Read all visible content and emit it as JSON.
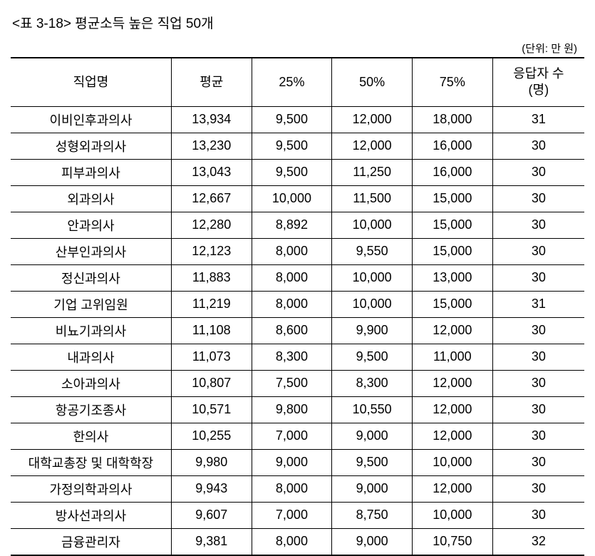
{
  "title": "<표 3-18> 평균소득 높은 직업 50개",
  "unit": "(단위: 만 원)",
  "table": {
    "headers": {
      "name": "직업명",
      "avg": "평균",
      "p25": "25%",
      "p50": "50%",
      "p75": "75%",
      "respondents": "응답자 수\n(명)"
    },
    "rows": [
      {
        "name": "이비인후과의사",
        "avg": "13,934",
        "p25": "9,500",
        "p50": "12,000",
        "p75": "18,000",
        "resp": "31"
      },
      {
        "name": "성형외과의사",
        "avg": "13,230",
        "p25": "9,500",
        "p50": "12,000",
        "p75": "16,000",
        "resp": "30"
      },
      {
        "name": "피부과의사",
        "avg": "13,043",
        "p25": "9,500",
        "p50": "11,250",
        "p75": "16,000",
        "resp": "30"
      },
      {
        "name": "외과의사",
        "avg": "12,667",
        "p25": "10,000",
        "p50": "11,500",
        "p75": "15,000",
        "resp": "30"
      },
      {
        "name": "안과의사",
        "avg": "12,280",
        "p25": "8,892",
        "p50": "10,000",
        "p75": "15,000",
        "resp": "30"
      },
      {
        "name": "산부인과의사",
        "avg": "12,123",
        "p25": "8,000",
        "p50": "9,550",
        "p75": "15,000",
        "resp": "30"
      },
      {
        "name": "정신과의사",
        "avg": "11,883",
        "p25": "8,000",
        "p50": "10,000",
        "p75": "13,000",
        "resp": "30"
      },
      {
        "name": "기업 고위임원",
        "avg": "11,219",
        "p25": "8,000",
        "p50": "10,000",
        "p75": "15,000",
        "resp": "31"
      },
      {
        "name": "비뇨기과의사",
        "avg": "11,108",
        "p25": "8,600",
        "p50": "9,900",
        "p75": "12,000",
        "resp": "30"
      },
      {
        "name": "내과의사",
        "avg": "11,073",
        "p25": "8,300",
        "p50": "9,500",
        "p75": "11,000",
        "resp": "30"
      },
      {
        "name": "소아과의사",
        "avg": "10,807",
        "p25": "7,500",
        "p50": "8,300",
        "p75": "12,000",
        "resp": "30"
      },
      {
        "name": "항공기조종사",
        "avg": "10,571",
        "p25": "9,800",
        "p50": "10,550",
        "p75": "12,000",
        "resp": "30"
      },
      {
        "name": "한의사",
        "avg": "10,255",
        "p25": "7,000",
        "p50": "9,000",
        "p75": "12,000",
        "resp": "30"
      },
      {
        "name": "대학교총장 및 대학학장",
        "avg": "9,980",
        "p25": "9,000",
        "p50": "9,500",
        "p75": "10,000",
        "resp": "30"
      },
      {
        "name": "가정의학과의사",
        "avg": "9,943",
        "p25": "8,000",
        "p50": "9,000",
        "p75": "12,000",
        "resp": "30"
      },
      {
        "name": "방사선과의사",
        "avg": "9,607",
        "p25": "7,000",
        "p50": "8,750",
        "p75": "10,000",
        "resp": "30"
      },
      {
        "name": "금융관리자",
        "avg": "9,381",
        "p25": "8,000",
        "p50": "9,000",
        "p75": "10,750",
        "resp": "32"
      }
    ]
  },
  "styling": {
    "background_color": "#ffffff",
    "text_color": "#000000",
    "border_color": "#000000",
    "title_fontsize": 19,
    "cell_fontsize": 18,
    "unit_fontsize": 15,
    "col_widths": {
      "name": "28%",
      "avg": "14%",
      "p25": "14%",
      "p50": "14%",
      "p75": "14%",
      "resp": "16%"
    }
  }
}
